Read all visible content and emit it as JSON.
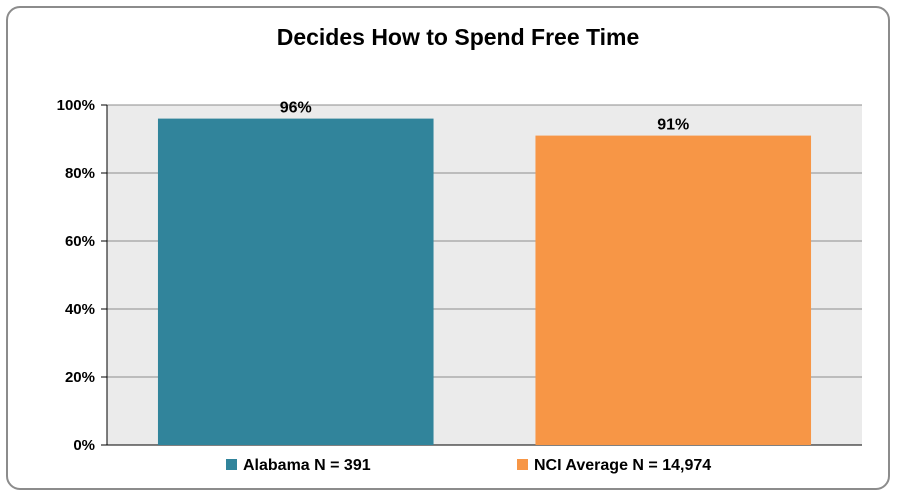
{
  "chart_data": {
    "type": "bar",
    "title": "Decides How to Spend Free Time",
    "xlabel": "",
    "ylabel": "",
    "ylim": [
      0,
      100
    ],
    "y_ticks": [
      0,
      20,
      40,
      60,
      80,
      100
    ],
    "y_tick_labels": [
      "0%",
      "20%",
      "40%",
      "60%",
      "80%",
      "100%"
    ],
    "grid": true,
    "legend_position": "bottom",
    "series": [
      {
        "name": "Alabama N = 391",
        "value": 96,
        "label": "96%",
        "color": "#31849b"
      },
      {
        "name": "NCI Average N = 14,974",
        "value": 91,
        "label": "91%",
        "color": "#f79646"
      }
    ],
    "plot_background": "#ebebeb",
    "gridline_color": "#8c8c8c"
  }
}
